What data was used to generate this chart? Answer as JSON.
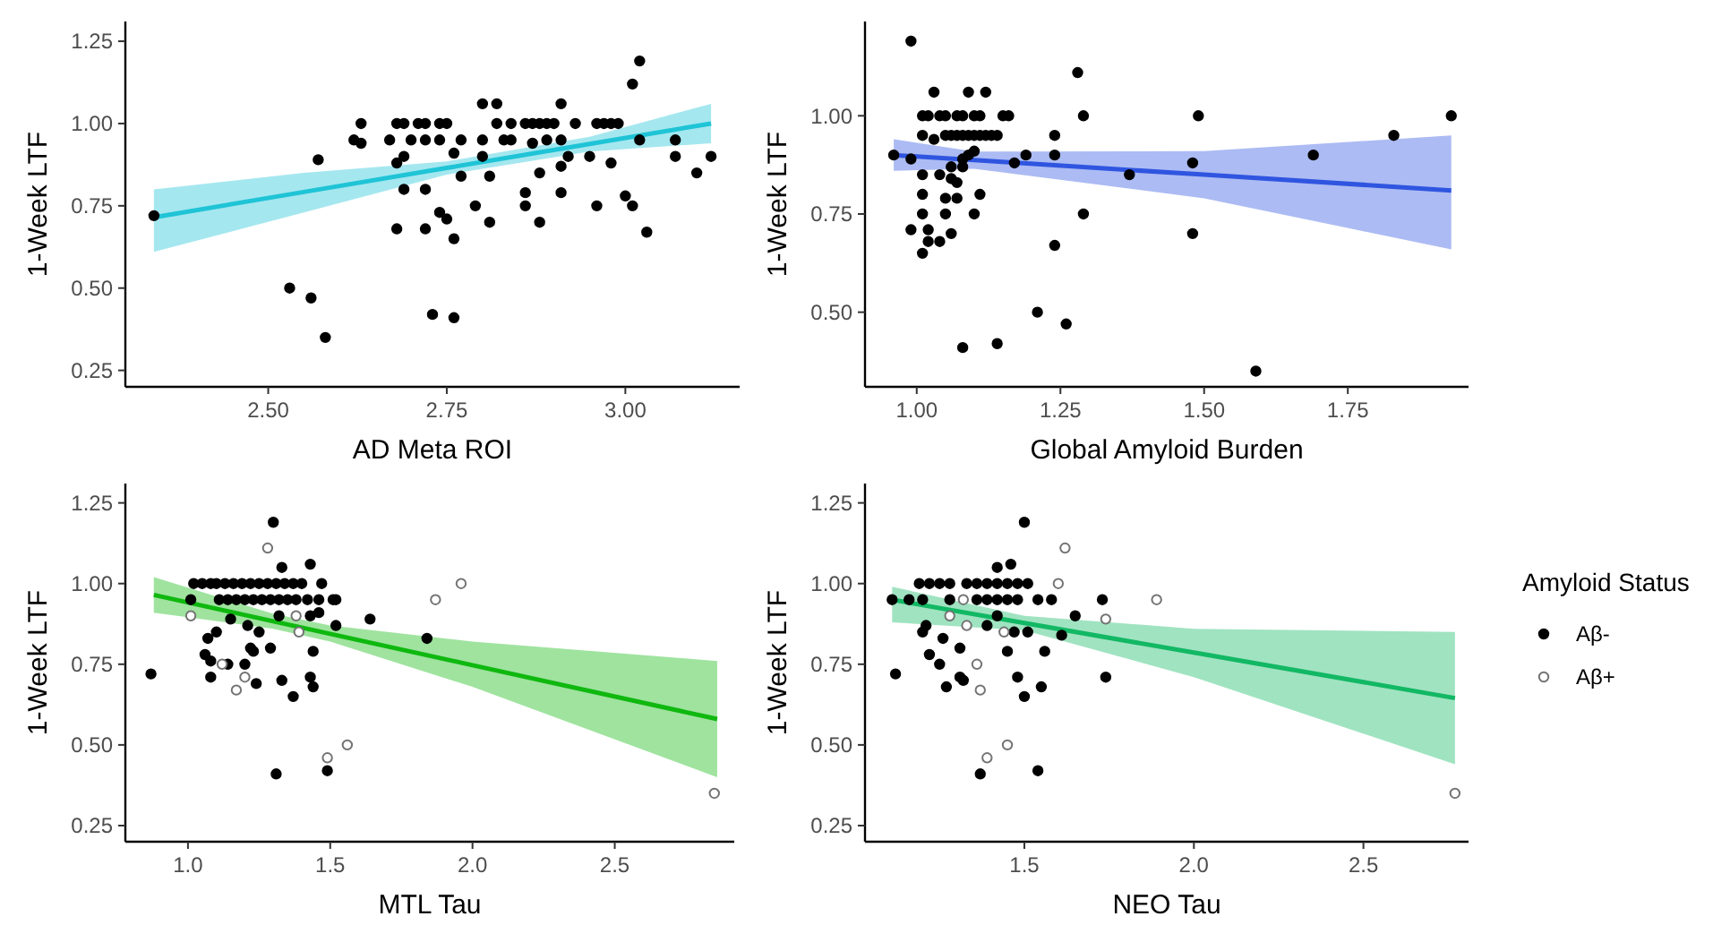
{
  "chart_data": [
    {
      "type": "scatter",
      "xlabel": "AD Meta ROI",
      "ylabel": "1-Week LTF",
      "xlim": [
        2.3,
        3.16
      ],
      "ylim": [
        0.2,
        1.31
      ],
      "xticks": [
        {
          "value": 2.5,
          "label": "2.50"
        },
        {
          "value": 2.75,
          "label": "2.75"
        },
        {
          "value": 3.0,
          "label": "3.00"
        }
      ],
      "yticks": [
        {
          "value": 0.25,
          "label": "0.25"
        },
        {
          "value": 0.5,
          "label": "0.50"
        },
        {
          "value": 0.75,
          "label": "0.75"
        },
        {
          "value": 1.0,
          "label": "1.00"
        },
        {
          "value": 1.25,
          "label": "1.25"
        }
      ],
      "grid": false,
      "legend": false,
      "series": [
        {
          "type": "scatter",
          "color": "#000000",
          "marker": "circle",
          "x": [
            2.34,
            2.53,
            2.56,
            2.58,
            2.57,
            2.62,
            2.63,
            2.63,
            2.67,
            2.68,
            2.69,
            2.68,
            2.68,
            2.69,
            2.69,
            2.7,
            2.71,
            2.72,
            2.72,
            2.72,
            2.72,
            2.74,
            2.75,
            2.74,
            2.74,
            2.75,
            2.76,
            2.77,
            2.76,
            2.73,
            2.76,
            2.77,
            2.79,
            2.8,
            2.8,
            2.8,
            2.81,
            2.81,
            2.82,
            2.82,
            2.84,
            2.86,
            2.87,
            2.88,
            2.83,
            2.84,
            2.86,
            2.86,
            2.88,
            2.88,
            2.87,
            2.89,
            2.9,
            2.89,
            2.91,
            2.91,
            2.91,
            2.91,
            2.92,
            2.93,
            2.95,
            2.96,
            2.96,
            2.97,
            2.98,
            2.99,
            2.98,
            3.0,
            3.01,
            3.01,
            3.02,
            3.02,
            3.03,
            3.07,
            3.07,
            3.1,
            3.12
          ],
          "values": [
            0.72,
            0.5,
            0.47,
            0.35,
            0.89,
            0.95,
            0.94,
            1.0,
            0.95,
            1.0,
            1.0,
            0.68,
            0.88,
            0.9,
            0.8,
            0.95,
            1.0,
            1.0,
            0.95,
            0.8,
            0.68,
            1.0,
            1.0,
            0.95,
            0.73,
            0.71,
            0.91,
            0.84,
            0.65,
            0.42,
            0.41,
            0.95,
            0.75,
            1.06,
            0.95,
            0.9,
            0.84,
            0.7,
            1.06,
            1.0,
            1.0,
            1.0,
            1.0,
            1.0,
            0.95,
            0.95,
            0.79,
            0.75,
            0.85,
            0.7,
            0.94,
            1.0,
            1.0,
            0.95,
            0.95,
            1.06,
            0.87,
            0.79,
            0.9,
            1.0,
            0.9,
            0.75,
            1.0,
            1.0,
            1.0,
            1.0,
            0.88,
            0.78,
            0.75,
            1.12,
            1.19,
            0.95,
            0.67,
            0.95,
            0.9,
            0.85,
            0.9
          ]
        },
        {
          "type": "line",
          "color": "#1fc4d6",
          "marker": "none",
          "x": [
            2.34,
            2.55,
            2.75,
            2.95,
            3.12
          ],
          "values": [
            0.715,
            0.792,
            0.865,
            0.938,
            1.0
          ],
          "lower": [
            0.61,
            0.73,
            0.845,
            0.915,
            0.94
          ],
          "upper": [
            0.8,
            0.85,
            0.885,
            0.96,
            1.06
          ]
        }
      ]
    },
    {
      "type": "scatter",
      "xlabel": "Global Amyloid Burden",
      "ylabel": "1-Week LTF",
      "xlim": [
        0.91,
        1.96
      ],
      "ylim": [
        0.31,
        1.24
      ],
      "xticks": [
        {
          "value": 1.0,
          "label": "1.00"
        },
        {
          "value": 1.25,
          "label": "1.25"
        },
        {
          "value": 1.5,
          "label": "1.50"
        },
        {
          "value": 1.75,
          "label": "1.75"
        }
      ],
      "yticks": [
        {
          "value": 0.5,
          "label": "0.50"
        },
        {
          "value": 0.75,
          "label": "0.75"
        },
        {
          "value": 1.0,
          "label": "1.00"
        }
      ],
      "grid": false,
      "legend": false,
      "series": [
        {
          "type": "scatter",
          "color": "#000000",
          "marker": "circle",
          "x": [
            0.96,
            0.99,
            0.99,
            0.99,
            1.01,
            1.02,
            1.01,
            1.01,
            1.01,
            1.02,
            1.01,
            1.01,
            1.03,
            1.02,
            1.04,
            1.03,
            1.04,
            1.05,
            1.07,
            1.08,
            1.1,
            1.11,
            1.05,
            1.06,
            1.07,
            1.08,
            1.09,
            1.1,
            1.11,
            1.12,
            1.13,
            1.14,
            1.04,
            1.05,
            1.05,
            1.06,
            1.06,
            1.06,
            1.07,
            1.07,
            1.08,
            1.08,
            1.09,
            1.09,
            1.08,
            1.1,
            1.1,
            1.11,
            1.12,
            1.14,
            1.15,
            1.16,
            1.17,
            1.19,
            1.21,
            1.24,
            1.24,
            1.24,
            1.26,
            1.28,
            1.29,
            1.29,
            1.37,
            1.48,
            1.48,
            1.49,
            1.59,
            1.69,
            1.83,
            1.93
          ],
          "values": [
            0.9,
            1.19,
            0.89,
            0.71,
            1.0,
            1.0,
            0.85,
            0.8,
            0.75,
            0.71,
            0.65,
            0.95,
            1.06,
            0.68,
            0.68,
            0.94,
            1.0,
            1.0,
            1.0,
            1.0,
            1.0,
            1.0,
            0.95,
            0.95,
            0.95,
            0.95,
            0.95,
            0.95,
            0.95,
            0.95,
            0.95,
            0.95,
            0.85,
            0.75,
            0.79,
            0.87,
            0.7,
            0.84,
            0.83,
            0.79,
            0.89,
            0.87,
            1.06,
            0.9,
            0.41,
            0.91,
            0.75,
            0.8,
            1.06,
            0.42,
            1.0,
            1.0,
            0.88,
            0.9,
            0.5,
            0.95,
            0.9,
            0.67,
            0.47,
            1.11,
            1.0,
            0.75,
            0.85,
            0.88,
            0.7,
            1.0,
            0.35,
            0.9,
            0.95,
            1.0
          ]
        },
        {
          "type": "line",
          "color": "#2f55e0",
          "marker": "none",
          "x": [
            0.96,
            1.1,
            1.5,
            1.93
          ],
          "values": [
            0.9,
            0.887,
            0.85,
            0.81
          ],
          "lower": [
            0.86,
            0.865,
            0.79,
            0.66
          ],
          "upper": [
            0.94,
            0.909,
            0.91,
            0.95
          ]
        }
      ]
    },
    {
      "type": "scatter",
      "xlabel": "MTL Tau",
      "ylabel": "1-Week LTF",
      "xlim": [
        0.78,
        2.92
      ],
      "ylim": [
        0.2,
        1.31
      ],
      "xticks": [
        {
          "value": 1.0,
          "label": "1.0"
        },
        {
          "value": 1.5,
          "label": "1.5"
        },
        {
          "value": 2.0,
          "label": "2.0"
        },
        {
          "value": 2.5,
          "label": "2.5"
        }
      ],
      "yticks": [
        {
          "value": 0.25,
          "label": "0.25"
        },
        {
          "value": 0.5,
          "label": "0.50"
        },
        {
          "value": 0.75,
          "label": "0.75"
        },
        {
          "value": 1.0,
          "label": "1.00"
        },
        {
          "value": 1.25,
          "label": "1.25"
        }
      ],
      "grid": false,
      "legend": false,
      "series": [
        {
          "type": "scatter",
          "color": "#000000",
          "marker": "circle",
          "x": [
            0.87,
            1.02,
            1.05,
            1.08,
            1.1,
            1.13,
            1.16,
            1.19,
            1.22,
            1.25,
            1.28,
            1.31,
            1.34,
            1.37,
            1.4,
            1.01,
            1.11,
            1.14,
            1.17,
            1.2,
            1.23,
            1.26,
            1.29,
            1.32,
            1.35,
            1.38,
            1.42,
            1.51,
            1.52,
            1.07,
            1.06,
            1.08,
            1.08,
            1.1,
            1.14,
            1.15,
            1.2,
            1.21,
            1.22,
            1.23,
            1.24,
            1.25,
            1.3,
            1.29,
            1.31,
            1.32,
            1.33,
            1.33,
            1.37,
            1.43,
            1.43,
            1.44,
            1.44,
            1.43,
            1.46,
            1.47,
            1.46,
            1.49,
            1.52,
            1.64,
            1.84
          ],
          "values": [
            0.72,
            1.0,
            1.0,
            1.0,
            1.0,
            1.0,
            1.0,
            1.0,
            1.0,
            1.0,
            1.0,
            1.0,
            1.0,
            1.0,
            1.0,
            0.95,
            0.95,
            0.95,
            0.95,
            0.95,
            0.95,
            0.95,
            0.95,
            0.95,
            0.95,
            0.95,
            0.95,
            0.95,
            0.95,
            0.83,
            0.78,
            0.76,
            0.71,
            0.85,
            0.75,
            0.89,
            0.75,
            0.87,
            0.8,
            0.79,
            0.69,
            0.85,
            1.19,
            0.8,
            0.41,
            0.9,
            0.7,
            1.05,
            0.65,
            1.06,
            0.71,
            0.79,
            0.68,
            0.9,
            0.91,
            1.0,
            0.95,
            0.42,
            0.87,
            0.89,
            0.83
          ]
        },
        {
          "type": "scatter",
          "color": "#ffffff",
          "marker": "circle",
          "x": [
            1.01,
            1.12,
            1.17,
            1.2,
            1.28,
            1.38,
            1.39,
            1.49,
            1.56,
            1.87,
            1.96,
            2.85
          ],
          "values": [
            0.9,
            0.75,
            0.67,
            0.71,
            1.11,
            0.9,
            0.85,
            0.46,
            0.5,
            0.95,
            1.0,
            0.35
          ]
        },
        {
          "type": "line",
          "color": "#0fb80f",
          "marker": "none",
          "x": [
            0.88,
            1.3,
            1.5,
            2.0,
            2.86
          ],
          "values": [
            0.965,
            0.883,
            0.844,
            0.747,
            0.58
          ],
          "lower": [
            0.91,
            0.86,
            0.82,
            0.68,
            0.4
          ],
          "upper": [
            1.02,
            0.906,
            0.87,
            0.82,
            0.76
          ]
        }
      ]
    },
    {
      "type": "scatter",
      "xlabel": "NEO Tau",
      "ylabel": "1-Week LTF",
      "xlim": [
        1.03,
        2.81
      ],
      "ylim": [
        0.2,
        1.31
      ],
      "xticks": [
        {
          "value": 1.5,
          "label": "1.5"
        },
        {
          "value": 2.0,
          "label": "2.0"
        },
        {
          "value": 2.5,
          "label": "2.5"
        }
      ],
      "yticks": [
        {
          "value": 0.25,
          "label": "0.25"
        },
        {
          "value": 0.5,
          "label": "0.50"
        },
        {
          "value": 0.75,
          "label": "0.75"
        },
        {
          "value": 1.0,
          "label": "1.00"
        },
        {
          "value": 1.25,
          "label": "1.25"
        }
      ],
      "grid": false,
      "legend": "right",
      "legend_title": "Amyloid Status",
      "series": [
        {
          "type": "scatter",
          "name": "Aβ-",
          "color": "#000000",
          "marker": "circle",
          "x": [
            1.11,
            1.12,
            1.16,
            1.2,
            1.19,
            1.22,
            1.25,
            1.28,
            1.33,
            1.36,
            1.39,
            1.42,
            1.45,
            1.48,
            1.51,
            1.36,
            1.39,
            1.42,
            1.45,
            1.48,
            1.54,
            1.58,
            1.21,
            1.2,
            1.22,
            1.25,
            1.26,
            1.27,
            1.28,
            1.31,
            1.31,
            1.32,
            1.37,
            1.39,
            1.42,
            1.42,
            1.46,
            1.45,
            1.47,
            1.48,
            1.5,
            1.5,
            1.51,
            1.54,
            1.55,
            1.56,
            1.61,
            1.65,
            1.73,
            1.74
          ],
          "values": [
            0.95,
            0.72,
            0.95,
            0.95,
            1.0,
            1.0,
            1.0,
            1.0,
            1.0,
            1.0,
            1.0,
            1.0,
            1.0,
            1.0,
            1.0,
            0.95,
            0.95,
            0.95,
            0.95,
            0.95,
            0.95,
            0.95,
            0.87,
            0.85,
            0.78,
            0.75,
            0.83,
            0.68,
            0.95,
            0.8,
            0.71,
            0.7,
            0.41,
            0.87,
            1.05,
            0.9,
            1.06,
            0.79,
            0.85,
            0.71,
            1.19,
            0.65,
            0.85,
            0.42,
            0.68,
            0.79,
            0.84,
            0.9,
            0.95,
            0.71
          ]
        },
        {
          "type": "scatter",
          "name": "Aβ+",
          "color": "#ffffff",
          "marker": "circle",
          "x": [
            1.32,
            1.28,
            1.33,
            1.36,
            1.37,
            1.39,
            1.44,
            1.45,
            1.6,
            1.62,
            1.74,
            1.89,
            2.77
          ],
          "values": [
            0.95,
            0.9,
            0.87,
            0.75,
            0.67,
            0.46,
            0.85,
            0.5,
            1.0,
            1.11,
            0.89,
            0.95,
            0.35
          ]
        },
        {
          "type": "line",
          "color": "#12b864",
          "marker": "none",
          "x": [
            1.11,
            1.5,
            2.0,
            2.77
          ],
          "values": [
            0.95,
            0.878,
            0.786,
            0.645
          ],
          "lower": [
            0.88,
            0.855,
            0.71,
            0.44
          ],
          "upper": [
            0.99,
            0.9,
            0.86,
            0.85
          ]
        }
      ]
    }
  ]
}
